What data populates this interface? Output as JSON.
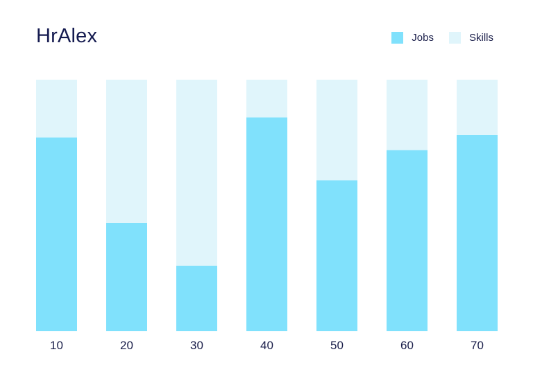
{
  "chart_data": {
    "type": "bar",
    "stacked": true,
    "title": "HrAlex",
    "categories": [
      "10",
      "20",
      "30",
      "40",
      "50",
      "60",
      "70"
    ],
    "series": [
      {
        "name": "Jobs",
        "color": "#80e1fc",
        "values": [
          77,
          43,
          26,
          85,
          60,
          72,
          78
        ]
      },
      {
        "name": "Skills",
        "color": "#e0f5fb",
        "values": [
          23,
          57,
          74,
          15,
          40,
          28,
          22
        ]
      }
    ],
    "ylim": [
      0,
      100
    ],
    "grid": false,
    "legend_position": "top-right",
    "xlabel": "",
    "ylabel": ""
  }
}
